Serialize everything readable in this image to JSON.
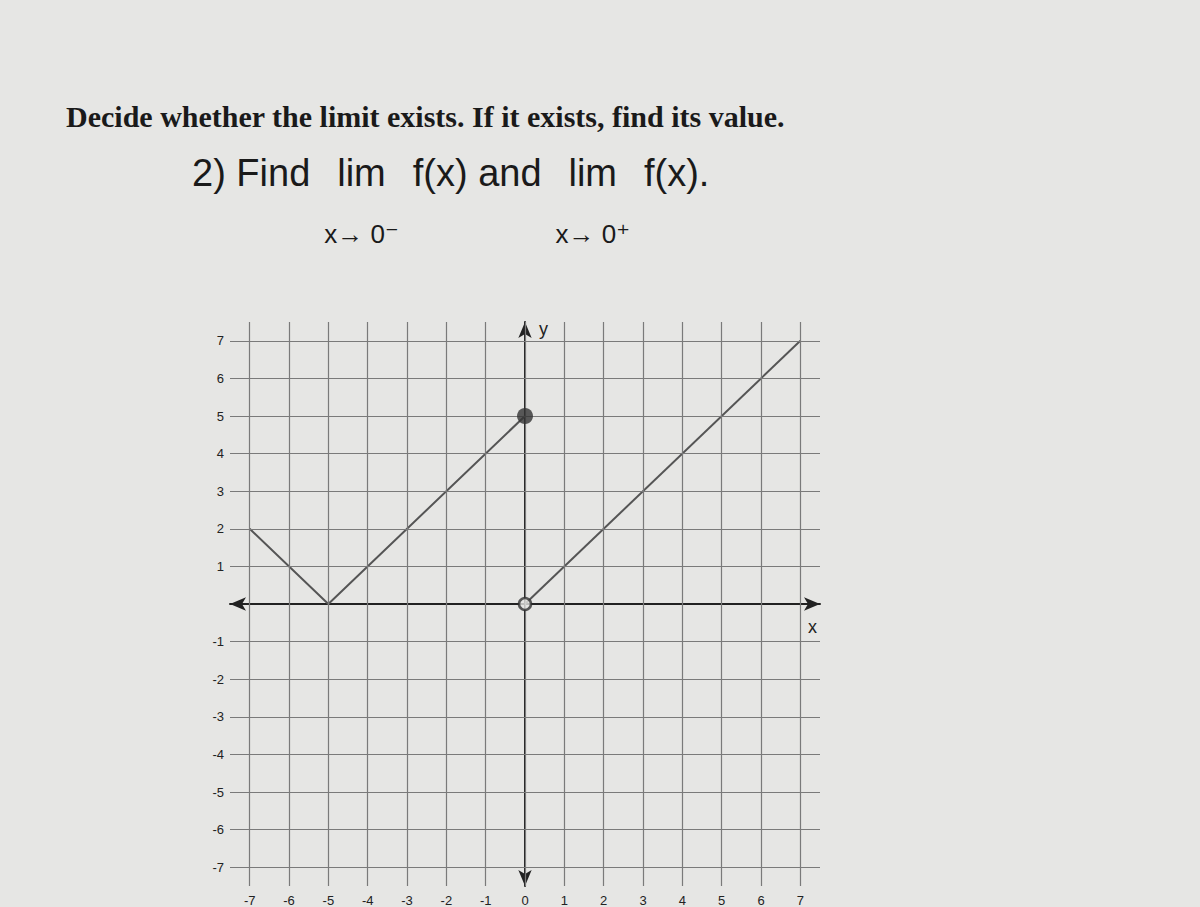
{
  "chart_data": {
    "type": "line",
    "title": "Decide whether the limit exists. If it exists, find its value.",
    "question": [
      "2) Find",
      "lim",
      "f(x) and",
      "lim",
      "f(x)."
    ],
    "limit_subscripts": [
      "x→ 0⁻",
      "x→ 0⁺"
    ],
    "xlabel": "x",
    "ylabel": "y",
    "series": [
      {
        "type": "line",
        "color": "#555555",
        "x": [
          -7,
          -5,
          0
        ],
        "values": [
          2,
          0,
          5
        ]
      },
      {
        "type": "line",
        "color": "#555555",
        "x": [
          0,
          7
        ],
        "values": [
          0,
          7
        ]
      },
      {
        "type": "scatter",
        "color": "#333333",
        "marker": "filled",
        "x": [
          0
        ],
        "values": [
          5
        ]
      },
      {
        "type": "scatter",
        "color": "#333333",
        "marker": "open",
        "x": [
          0
        ],
        "values": [
          0
        ]
      }
    ],
    "xlim": [
      -7.5,
      7.5
    ],
    "ylim": [
      -7.5,
      7.5
    ],
    "xticks": [
      -7,
      -6,
      -5,
      -4,
      -3,
      -2,
      -1,
      0,
      1,
      2,
      3,
      4,
      5,
      6,
      7
    ],
    "yticks": [
      -7,
      -6,
      -5,
      -4,
      -3,
      -2,
      -1,
      1,
      2,
      3,
      4,
      5,
      6,
      7
    ],
    "grid": true
  }
}
